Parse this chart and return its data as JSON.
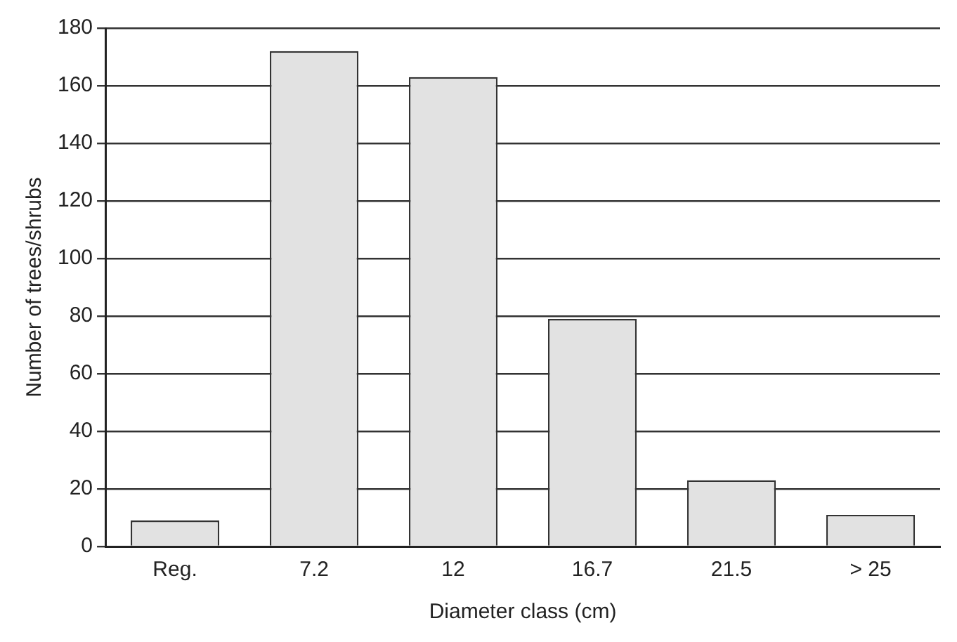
{
  "chart_data": {
    "type": "bar",
    "xlabel": "Diameter class (cm)",
    "ylabel": "Number of trees/shrubs",
    "categories": [
      "Reg.",
      "7.2",
      "12",
      "16.7",
      "21.5",
      "> 25"
    ],
    "values": [
      9,
      172,
      163,
      79,
      23,
      11
    ],
    "color": "#e2e2e2",
    "ylim": [
      0,
      180
    ],
    "yticks": [
      0,
      20,
      40,
      60,
      80,
      100,
      120,
      140,
      160,
      180
    ],
    "grid": "y",
    "legend": false
  }
}
